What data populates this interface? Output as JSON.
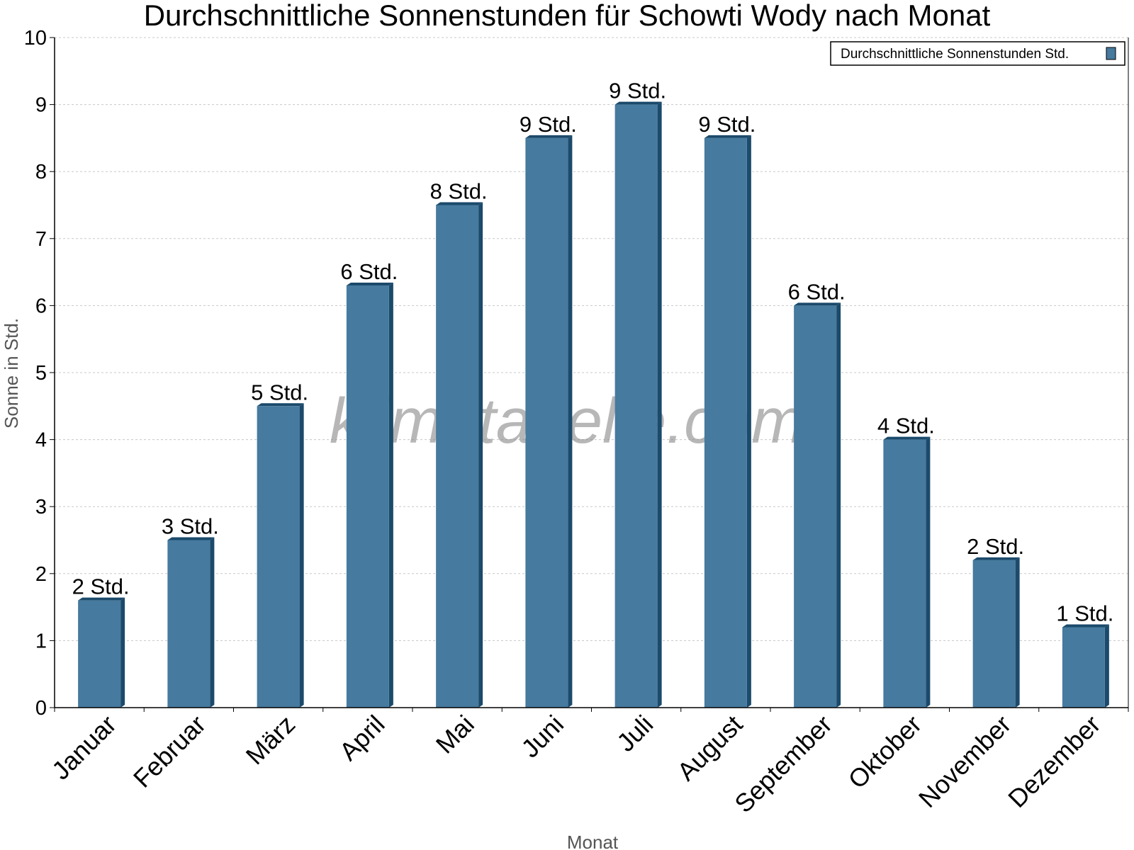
{
  "chart_data": {
    "type": "bar",
    "title": "Durchschnittliche Sonnenstunden für Schowti Wody nach Monat",
    "xlabel": "Monat",
    "ylabel": "Sonne in Std.",
    "ylim": [
      0,
      10
    ],
    "yticks": [
      "0",
      "1",
      "2",
      "3",
      "4",
      "5",
      "6",
      "7",
      "8",
      "9",
      "10"
    ],
    "grid": true,
    "legend_position": "top-right",
    "categories": [
      "Januar",
      "Februar",
      "März",
      "April",
      "Mai",
      "Juni",
      "Juli",
      "August",
      "September",
      "Oktober",
      "November",
      "Dezember"
    ],
    "series": [
      {
        "name": "Durchschnittliche Sonnenstunden Std.",
        "color": "#467a9e",
        "values": [
          1.6,
          2.5,
          4.5,
          6.3,
          7.5,
          8.5,
          9.0,
          8.5,
          6.0,
          4.0,
          2.2,
          1.2
        ],
        "labels": [
          "2 Std.",
          "3 Std.",
          "5 Std.",
          "6 Std.",
          "8 Std.",
          "9 Std.",
          "9 Std.",
          "9 Std.",
          "6 Std.",
          "4 Std.",
          "2 Std.",
          "1 Std."
        ]
      }
    ]
  },
  "watermark": "klimatabelle.com",
  "colors": {
    "bar": "#467a9e",
    "bar_edge": "#1b4a6b",
    "grid": "#c8c8c8"
  }
}
